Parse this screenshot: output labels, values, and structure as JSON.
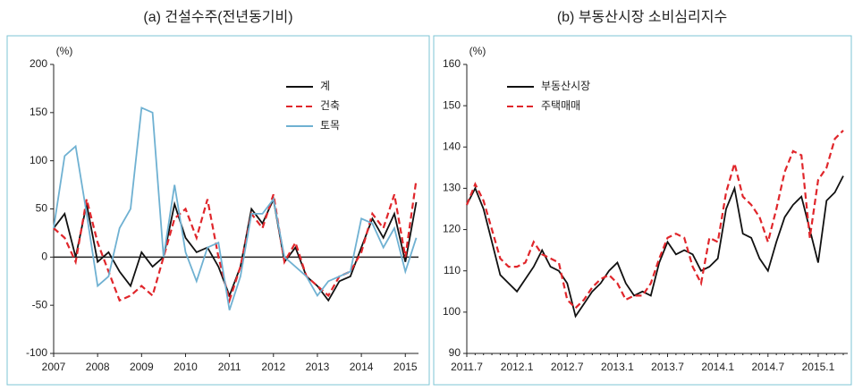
{
  "chart_data": [
    {
      "type": "line",
      "title": "(a) 건설수주(전년동기비)",
      "y_label": "(%)",
      "x": [
        2007,
        2007.25,
        2007.5,
        2007.75,
        2008,
        2008.25,
        2008.5,
        2008.75,
        2009,
        2009.25,
        2009.5,
        2009.75,
        2010,
        2010.25,
        2010.5,
        2010.75,
        2011,
        2011.25,
        2011.5,
        2011.75,
        2012,
        2012.25,
        2012.5,
        2012.75,
        2013,
        2013.25,
        2013.5,
        2013.75,
        2014,
        2014.25,
        2014.5,
        2014.75,
        2015,
        2015.25
      ],
      "series": [
        {
          "name": "계",
          "color": "#111111",
          "linestyle": "solid",
          "values": [
            30,
            45,
            0,
            55,
            -5,
            5,
            -15,
            -30,
            5,
            -10,
            0,
            55,
            20,
            5,
            10,
            -10,
            -40,
            -10,
            50,
            35,
            60,
            -5,
            10,
            -20,
            -30,
            -45,
            -25,
            -20,
            10,
            40,
            20,
            45,
            -5,
            57
          ]
        },
        {
          "name": "건축",
          "color": "#e0262b",
          "linestyle": "dashed",
          "values": [
            30,
            20,
            -5,
            60,
            15,
            -15,
            -45,
            -40,
            -30,
            -40,
            0,
            40,
            50,
            20,
            60,
            0,
            -45,
            -10,
            45,
            30,
            65,
            -5,
            15,
            -20,
            -30,
            -40,
            -20,
            -15,
            5,
            45,
            30,
            65,
            0,
            80
          ]
        },
        {
          "name": "토목",
          "color": "#6fb1d2",
          "linestyle": "solid",
          "values": [
            30,
            105,
            115,
            45,
            -30,
            -20,
            30,
            50,
            155,
            150,
            0,
            75,
            5,
            -25,
            10,
            15,
            -55,
            -20,
            45,
            45,
            60,
            0,
            -10,
            -20,
            -40,
            -25,
            -20,
            -15,
            40,
            35,
            10,
            30,
            -15,
            20
          ]
        }
      ],
      "xlim": [
        2007,
        2015.3
      ],
      "xticks": [
        2007,
        2008,
        2009,
        2010,
        2011,
        2012,
        2013,
        2014,
        2015
      ],
      "ylim": [
        -100,
        200
      ],
      "yticks": [
        -100,
        -50,
        0,
        50,
        100,
        150,
        200
      ],
      "legend": "upper right"
    },
    {
      "type": "line",
      "title": "(b) 부동산시장 소비심리지수",
      "y_label": "(%)",
      "categories": [
        "2011.7",
        null,
        null,
        null,
        null,
        null,
        "2012.1",
        null,
        null,
        null,
        null,
        null,
        "2012.7",
        null,
        null,
        null,
        null,
        null,
        "2013.1",
        null,
        null,
        null,
        null,
        null,
        "2013.7",
        null,
        null,
        null,
        null,
        null,
        "2014.1",
        null,
        null,
        null,
        null,
        null,
        "2014.7",
        null,
        null,
        null,
        null,
        null,
        "2015.1",
        null,
        null,
        null
      ],
      "series": [
        {
          "name": "부동산시장",
          "color": "#111111",
          "linestyle": "solid",
          "values": [
            126,
            130,
            125,
            117,
            109,
            107,
            105,
            108,
            111,
            115,
            111,
            110,
            107,
            99,
            102,
            105,
            107,
            110,
            112,
            107,
            104,
            105,
            104,
            112,
            117,
            114,
            115,
            114,
            110,
            111,
            113,
            125,
            130,
            119,
            118,
            113,
            110,
            117,
            123,
            126,
            128,
            120,
            112,
            127,
            129,
            133
          ]
        },
        {
          "name": "주택매매",
          "color": "#e0262b",
          "linestyle": "dashed",
          "values": [
            126,
            131,
            127,
            120,
            113,
            111,
            111,
            112,
            117,
            114,
            113,
            112,
            103,
            101,
            103,
            106,
            108,
            109,
            107,
            103,
            104,
            104,
            107,
            113,
            118,
            119,
            118,
            111,
            107,
            118,
            117,
            129,
            136,
            128,
            126,
            123,
            117,
            125,
            134,
            139,
            138,
            118,
            132,
            135,
            142,
            144
          ]
        }
      ],
      "ylim": [
        90,
        160
      ],
      "yticks": [
        90,
        100,
        110,
        120,
        130,
        140,
        150,
        160
      ],
      "legend": "upper left"
    }
  ]
}
